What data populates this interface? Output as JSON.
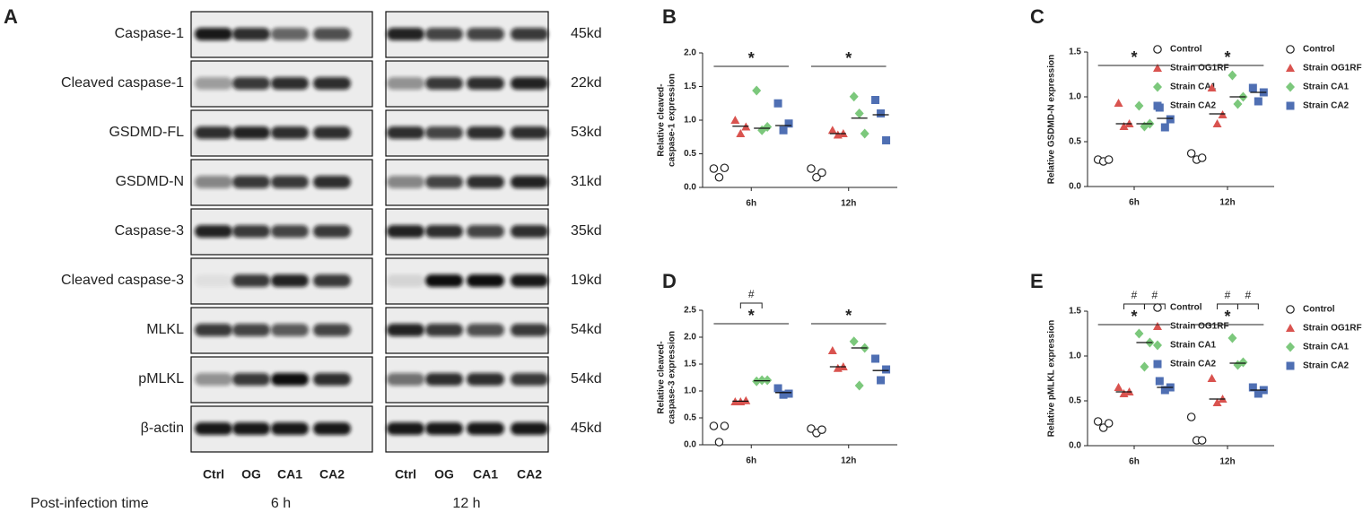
{
  "blot": {
    "panel": "A",
    "rows": [
      {
        "protein": "Caspase-1",
        "size": "45kd"
      },
      {
        "protein": "Cleaved caspase-1",
        "size": "22kd"
      },
      {
        "protein": "GSDMD-FL",
        "size": "53kd"
      },
      {
        "protein": "GSDMD-N",
        "size": "31kd"
      },
      {
        "protein": "Caspase-3",
        "size": "35kd"
      },
      {
        "protein": "Cleaved caspase-3",
        "size": "19kd"
      },
      {
        "protein": "MLKL",
        "size": "54kd"
      },
      {
        "protein": "pMLKL",
        "size": "54kd"
      },
      {
        "protein": "β-actin",
        "size": "45kd"
      }
    ],
    "lanes": [
      "Ctrl",
      "OG",
      "CA1",
      "CA2"
    ],
    "times": [
      "6 h",
      "12 h"
    ],
    "time_label": "Post-infection time"
  },
  "chart_data": [
    {
      "type": "dot",
      "panel": "B",
      "ylabel": [
        "Relative cleaved-",
        "caspase-1 expression"
      ],
      "categories": [
        "6h",
        "12h"
      ],
      "ylim": [
        0,
        2
      ],
      "yticks": [
        {
          "value": 0,
          "label": "0.0"
        },
        0.5,
        {
          "value": 1,
          "label": "1.0"
        },
        1.5,
        {
          "value": 2,
          "label": "2.0"
        }
      ],
      "significance": [
        [
          "*"
        ],
        [
          "*"
        ]
      ],
      "series": [
        {
          "name": "Control",
          "color": "#ffffff",
          "marker": "circle",
          "values": [
            [
              0.28,
              0.15,
              0.29
            ],
            [
              0.28,
              0.15,
              0.22
            ]
          ]
        },
        {
          "name": "Strain OG1RF",
          "color": "#d9534f",
          "marker": "triangle",
          "values": [
            [
              1.0,
              0.8,
              0.9
            ],
            [
              0.85,
              0.78,
              0.8
            ]
          ],
          "means": [
            0.91,
            0.8
          ]
        },
        {
          "name": "Strain CA1",
          "color": "#7cc87c",
          "marker": "diamond",
          "values": [
            [
              1.44,
              0.85,
              0.9
            ],
            [
              1.35,
              1.1,
              0.8
            ]
          ],
          "means": [
            0.88,
            1.03
          ]
        },
        {
          "name": "Strain CA2",
          "color": "#4f6fb3",
          "marker": "square",
          "values": [
            [
              1.25,
              0.85,
              0.95
            ],
            [
              1.3,
              1.1,
              0.7
            ]
          ],
          "means": [
            0.92,
            1.08
          ]
        }
      ]
    },
    {
      "type": "dot",
      "panel": "C",
      "ylabel": [
        "Relative GSDMD-N expression"
      ],
      "categories": [
        "6h",
        "12h"
      ],
      "ylim": [
        0,
        1.5
      ],
      "yticks": [
        {
          "value": 0,
          "label": "0.0"
        },
        0.5,
        {
          "value": 1,
          "label": "1.0"
        },
        1.5
      ],
      "significance": [
        [
          "*"
        ],
        [
          "*"
        ]
      ],
      "series": [
        {
          "name": "Control",
          "color": "#ffffff",
          "marker": "circle",
          "values": [
            [
              0.3,
              0.28,
              0.3
            ],
            [
              0.37,
              0.3,
              0.32
            ]
          ]
        },
        {
          "name": "Strain OG1RF",
          "color": "#d9534f",
          "marker": "triangle",
          "values": [
            [
              0.93,
              0.67,
              0.7
            ],
            [
              1.1,
              0.7,
              0.8
            ]
          ],
          "means": [
            0.7,
            0.81
          ]
        },
        {
          "name": "Strain CA1",
          "color": "#7cc87c",
          "marker": "diamond",
          "values": [
            [
              0.9,
              0.67,
              0.7
            ],
            [
              1.24,
              0.92,
              1.0
            ]
          ],
          "means": [
            0.7,
            1.0
          ]
        },
        {
          "name": "Strain CA2",
          "color": "#4f6fb3",
          "marker": "square",
          "values": [
            [
              0.88,
              0.66,
              0.75
            ],
            [
              1.1,
              0.95,
              1.05
            ]
          ],
          "means": [
            0.76,
            1.05
          ]
        }
      ]
    },
    {
      "type": "dot",
      "panel": "D",
      "ylabel": [
        "Relative cleaved-",
        "caspase-3 expression"
      ],
      "categories": [
        "6h",
        "12h"
      ],
      "ylim": [
        0,
        2.5
      ],
      "yticks": [
        {
          "value": 0,
          "label": "0.0"
        },
        0.5,
        {
          "value": 1,
          "label": "1.0"
        },
        1.5,
        {
          "value": 2,
          "label": "2.0"
        },
        2.5
      ],
      "significance": [
        [
          "*",
          "#"
        ],
        [
          "*"
        ]
      ],
      "series": [
        {
          "name": "Control",
          "color": "#ffffff",
          "marker": "circle",
          "values": [
            [
              0.35,
              0.05,
              0.35
            ],
            [
              0.3,
              0.22,
              0.28
            ]
          ]
        },
        {
          "name": "Strain OG1RF",
          "color": "#d9534f",
          "marker": "triangle",
          "values": [
            [
              0.8,
              0.8,
              0.82
            ],
            [
              1.75,
              1.42,
              1.45
            ]
          ],
          "means": [
            0.81,
            1.45
          ]
        },
        {
          "name": "Strain CA1",
          "color": "#7cc87c",
          "marker": "diamond",
          "values": [
            [
              1.18,
              1.2,
              1.2
            ],
            [
              1.92,
              1.1,
              1.8
            ]
          ],
          "means": [
            1.19,
            1.8
          ]
        },
        {
          "name": "Strain CA2",
          "color": "#4f6fb3",
          "marker": "square",
          "values": [
            [
              1.05,
              0.93,
              0.95
            ],
            [
              1.6,
              1.2,
              1.4
            ]
          ],
          "means": [
            0.97,
            1.38
          ]
        }
      ]
    },
    {
      "type": "dot",
      "panel": "E",
      "ylabel": [
        "Relative pMLKL expression"
      ],
      "categories": [
        "6h",
        "12h"
      ],
      "ylim": [
        0,
        1.5
      ],
      "yticks": [
        {
          "value": 0,
          "label": "0.0"
        },
        0.5,
        {
          "value": 1,
          "label": "1.0"
        },
        1.5
      ],
      "significance": [
        [
          "*",
          "#",
          "#"
        ],
        [
          "*",
          "#",
          "#"
        ]
      ],
      "series": [
        {
          "name": "Control",
          "color": "#ffffff",
          "marker": "circle",
          "values": [
            [
              0.27,
              0.2,
              0.25
            ],
            [
              0.32,
              0.06,
              0.06
            ]
          ]
        },
        {
          "name": "Strain OG1RF",
          "color": "#d9534f",
          "marker": "triangle",
          "values": [
            [
              0.65,
              0.58,
              0.6
            ],
            [
              0.75,
              0.48,
              0.52
            ]
          ],
          "means": [
            0.6,
            0.52
          ]
        },
        {
          "name": "Strain CA1",
          "color": "#7cc87c",
          "marker": "diamond",
          "values": [
            [
              1.25,
              0.88,
              1.15
            ],
            [
              1.2,
              0.9,
              0.93
            ]
          ],
          "means": [
            1.15,
            0.92
          ]
        },
        {
          "name": "Strain CA2",
          "color": "#4f6fb3",
          "marker": "square",
          "values": [
            [
              0.72,
              0.62,
              0.65
            ],
            [
              0.65,
              0.58,
              0.62
            ]
          ],
          "means": [
            0.65,
            0.62
          ]
        }
      ]
    }
  ]
}
